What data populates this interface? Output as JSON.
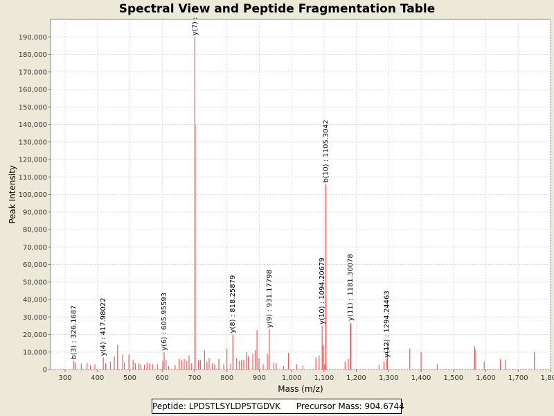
{
  "chart_data": {
    "type": "bar",
    "title": "Spectral View and Peptide Fragmentation Table",
    "xlabel": "Mass (m/z)",
    "ylabel": "Peak Intensity",
    "xlim": [
      255,
      1800
    ],
    "ylim": [
      0,
      200000
    ],
    "x_ticks": [
      300,
      400,
      500,
      600,
      700,
      800,
      900,
      1000,
      1100,
      1200,
      1300,
      1400,
      1500,
      1600,
      1700,
      1800
    ],
    "x_tick_labels": [
      "300",
      "400",
      "500",
      "600",
      "700",
      "800",
      "900",
      "1,000",
      "1,100",
      "1,200",
      "1,300",
      "1,400",
      "1,500",
      "1,600",
      "1,700",
      "1,800"
    ],
    "y_ticks": [
      0,
      10000,
      20000,
      30000,
      40000,
      50000,
      60000,
      70000,
      80000,
      90000,
      100000,
      110000,
      120000,
      130000,
      140000,
      150000,
      160000,
      170000,
      180000,
      190000
    ],
    "y_tick_labels": [
      "0",
      "10,000",
      "20,000",
      "30,000",
      "40,000",
      "50,000",
      "60,000",
      "70,000",
      "80,000",
      "90,000",
      "100,000",
      "110,000",
      "120,000",
      "130,000",
      "140,000",
      "150,000",
      "160,000",
      "170,000",
      "180,000",
      "190,000"
    ],
    "grid": true,
    "bar_color": "#ff5555",
    "peaks": [
      {
        "mz": 326.17,
        "intensity": 5000
      },
      {
        "mz": 333,
        "intensity": 4000
      },
      {
        "mz": 350,
        "intensity": 3500
      },
      {
        "mz": 368,
        "intensity": 3800
      },
      {
        "mz": 378,
        "intensity": 2500
      },
      {
        "mz": 392,
        "intensity": 3000
      },
      {
        "mz": 417.98,
        "intensity": 7000
      },
      {
        "mz": 425,
        "intensity": 3500
      },
      {
        "mz": 440,
        "intensity": 4500
      },
      {
        "mz": 452,
        "intensity": 7500
      },
      {
        "mz": 462,
        "intensity": 14000
      },
      {
        "mz": 478,
        "intensity": 8500
      },
      {
        "mz": 483,
        "intensity": 4000
      },
      {
        "mz": 497,
        "intensity": 8500
      },
      {
        "mz": 510,
        "intensity": 5500
      },
      {
        "mz": 517,
        "intensity": 3500
      },
      {
        "mz": 527,
        "intensity": 3500
      },
      {
        "mz": 534,
        "intensity": 3000
      },
      {
        "mz": 545,
        "intensity": 2800
      },
      {
        "mz": 553,
        "intensity": 4000
      },
      {
        "mz": 561,
        "intensity": 3500
      },
      {
        "mz": 570,
        "intensity": 3000
      },
      {
        "mz": 585,
        "intensity": 3000
      },
      {
        "mz": 602,
        "intensity": 5000
      },
      {
        "mz": 605.96,
        "intensity": 10000
      },
      {
        "mz": 612,
        "intensity": 5500
      },
      {
        "mz": 620,
        "intensity": 2000
      },
      {
        "mz": 640,
        "intensity": 2500
      },
      {
        "mz": 652,
        "intensity": 6000
      },
      {
        "mz": 660,
        "intensity": 5500
      },
      {
        "mz": 668,
        "intensity": 6000
      },
      {
        "mz": 676,
        "intensity": 5000
      },
      {
        "mz": 683,
        "intensity": 8000
      },
      {
        "mz": 690,
        "intensity": 3500
      },
      {
        "mz": 701,
        "intensity": 190000
      },
      {
        "mz": 702,
        "intensity": 140000
      },
      {
        "mz": 712,
        "intensity": 5500
      },
      {
        "mz": 718,
        "intensity": 5500
      },
      {
        "mz": 731,
        "intensity": 11000
      },
      {
        "mz": 738,
        "intensity": 4500
      },
      {
        "mz": 745,
        "intensity": 6500
      },
      {
        "mz": 755,
        "intensity": 3500
      },
      {
        "mz": 762,
        "intensity": 3000
      },
      {
        "mz": 775,
        "intensity": 6000
      },
      {
        "mz": 790,
        "intensity": 3000
      },
      {
        "mz": 800,
        "intensity": 12000
      },
      {
        "mz": 812,
        "intensity": 3500
      },
      {
        "mz": 818.26,
        "intensity": 20000
      },
      {
        "mz": 830,
        "intensity": 6500
      },
      {
        "mz": 838,
        "intensity": 5000
      },
      {
        "mz": 845,
        "intensity": 5500
      },
      {
        "mz": 852,
        "intensity": 5500
      },
      {
        "mz": 860,
        "intensity": 10000
      },
      {
        "mz": 866,
        "intensity": 7500
      },
      {
        "mz": 880,
        "intensity": 9000
      },
      {
        "mz": 888,
        "intensity": 11000
      },
      {
        "mz": 893,
        "intensity": 22500
      },
      {
        "mz": 899,
        "intensity": 6500
      },
      {
        "mz": 912,
        "intensity": 3000
      },
      {
        "mz": 925,
        "intensity": 9000
      },
      {
        "mz": 931.18,
        "intensity": 23000
      },
      {
        "mz": 945,
        "intensity": 4000
      },
      {
        "mz": 952,
        "intensity": 3500
      },
      {
        "mz": 975,
        "intensity": 2000
      },
      {
        "mz": 990,
        "intensity": 9500
      },
      {
        "mz": 1015,
        "intensity": 3000
      },
      {
        "mz": 1035,
        "intensity": 2500
      },
      {
        "mz": 1075,
        "intensity": 7000
      },
      {
        "mz": 1085,
        "intensity": 8000
      },
      {
        "mz": 1094.21,
        "intensity": 25000
      },
      {
        "mz": 1097,
        "intensity": 14000
      },
      {
        "mz": 1102,
        "intensity": 3000
      },
      {
        "mz": 1105.3,
        "intensity": 106000
      },
      {
        "mz": 1106,
        "intensity": 41000
      },
      {
        "mz": 1165,
        "intensity": 4500
      },
      {
        "mz": 1175,
        "intensity": 6000
      },
      {
        "mz": 1181.3,
        "intensity": 27000
      },
      {
        "mz": 1183,
        "intensity": 26000
      },
      {
        "mz": 1270,
        "intensity": 2500
      },
      {
        "mz": 1285,
        "intensity": 4500
      },
      {
        "mz": 1294.25,
        "intensity": 6000
      },
      {
        "mz": 1296,
        "intensity": 16000
      },
      {
        "mz": 1365,
        "intensity": 12000
      },
      {
        "mz": 1400,
        "intensity": 10000
      },
      {
        "mz": 1450,
        "intensity": 3000
      },
      {
        "mz": 1565,
        "intensity": 13500
      },
      {
        "mz": 1567,
        "intensity": 11500
      },
      {
        "mz": 1595,
        "intensity": 4500
      },
      {
        "mz": 1645,
        "intensity": 6000
      },
      {
        "mz": 1660,
        "intensity": 5500
      },
      {
        "mz": 1750,
        "intensity": 10000
      }
    ],
    "annotations": [
      {
        "text": "b(3) : 326.1687",
        "mz": 326.17,
        "intensity": 5000
      },
      {
        "text": "y(4) : 417.98022",
        "mz": 417.98,
        "intensity": 7000
      },
      {
        "text": "y(6) : 605.95593",
        "mz": 605.96,
        "intensity": 10000
      },
      {
        "text": "y(7) :",
        "mz": 701,
        "intensity": 190000
      },
      {
        "text": "y(8) : 818.25879",
        "mz": 818.26,
        "intensity": 20000
      },
      {
        "text": "y(9) : 931.17798",
        "mz": 931.18,
        "intensity": 23000
      },
      {
        "text": "y(10) : 1094.20679",
        "mz": 1094.21,
        "intensity": 25000
      },
      {
        "text": "b(10) : 1105.3042",
        "mz": 1105.3,
        "intensity": 106000
      },
      {
        "text": "y(11) : 1181.30078",
        "mz": 1181.3,
        "intensity": 27000
      },
      {
        "text": "y(12) : 1294.24463",
        "mz": 1294.25,
        "intensity": 6000
      }
    ]
  },
  "footer": {
    "peptide_label": "Peptide:",
    "peptide": "LPDSTLSYLDPSTGDVK",
    "precursor_label": "Precursor Mass:",
    "precursor_mass": "904.6744"
  }
}
